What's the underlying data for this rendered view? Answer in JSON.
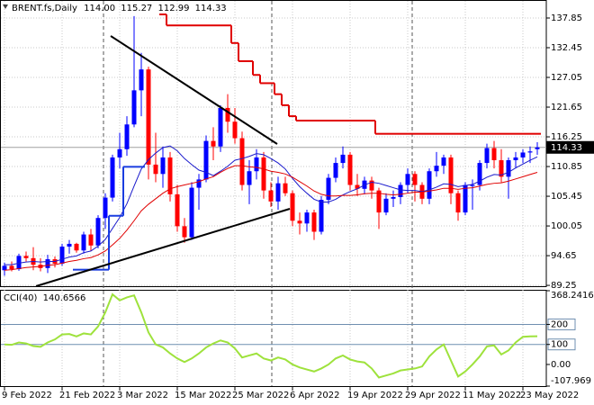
{
  "chart_data": [
    {
      "type": "candlestick",
      "title": "BRENT.fs,Daily",
      "quote": [
        "114.00",
        "115.27",
        "112.99",
        "114.33"
      ],
      "categories": [
        "9 Feb 2022",
        null,
        null,
        null,
        null,
        null,
        null,
        null,
        "21 Feb 2022",
        null,
        null,
        null,
        null,
        null,
        null,
        null,
        "3 Mar 2022",
        null,
        null,
        null,
        null,
        null,
        null,
        null,
        "15 Mar 2022",
        null,
        null,
        null,
        null,
        null,
        null,
        null,
        "25 Mar 2022",
        null,
        null,
        null,
        null,
        null,
        null,
        null,
        "6 Apr 2022",
        null,
        null,
        null,
        null,
        null,
        null,
        null,
        "19 Apr 2022",
        null,
        null,
        null,
        null,
        null,
        null,
        null,
        "29 Apr 2022",
        null,
        null,
        null,
        null,
        null,
        null,
        null,
        "11 May 2022",
        null,
        null,
        null,
        null,
        null,
        null,
        null,
        "23 May 2022",
        null,
        null
      ],
      "open": [
        92.0,
        92.8,
        92.2,
        94.6,
        94.2,
        93.0,
        92.4,
        94.0,
        93.2,
        96.3,
        96.8,
        95.6,
        98.5,
        96.5,
        101.5,
        105.2,
        112.5,
        114.0,
        118.5,
        124.7,
        128.5,
        111.2,
        109.5,
        112.5,
        105.8,
        100.0,
        98.0,
        107.0,
        108.5,
        115.5,
        114.5,
        121.5,
        119.0,
        116.0,
        107.5,
        110.0,
        112.5,
        106.5,
        104.5,
        107.8,
        106.0,
        101.0,
        100.5,
        102.5,
        99.0,
        104.8,
        108.8,
        111.5,
        113.0,
        107.5,
        106.8,
        108.3,
        106.5,
        102.5,
        105.0,
        105.3,
        107.5,
        109.5,
        107.5,
        105.0,
        110.0,
        111.0,
        112.5,
        106.0,
        102.5,
        107.3,
        107.5,
        111.5,
        114.2,
        112.0,
        109.0,
        112.0,
        112.5,
        113.4,
        114.0
      ],
      "high": [
        93.4,
        93.6,
        95.0,
        95.4,
        96.2,
        94.2,
        94.8,
        94.5,
        96.8,
        97.5,
        97.0,
        99.0,
        99.5,
        102.0,
        106.0,
        113.0,
        117.0,
        120.0,
        138.2,
        131.5,
        129.0,
        117.0,
        114.5,
        113.5,
        107.5,
        101.5,
        108.0,
        109.5,
        116.5,
        118.0,
        122.0,
        124.0,
        121.5,
        117.2,
        112.0,
        114.0,
        113.5,
        108.0,
        109.0,
        109.0,
        106.5,
        102.5,
        103.0,
        103.0,
        105.5,
        109.5,
        112.5,
        114.5,
        113.5,
        109.5,
        109.0,
        109.0,
        107.0,
        106.0,
        106.5,
        108.0,
        110.5,
        110.0,
        108.0,
        110.5,
        113.5,
        113.0,
        113.0,
        106.5,
        108.0,
        108.5,
        112.0,
        115.0,
        115.5,
        114.0,
        112.5,
        113.5,
        114.0,
        114.5,
        115.27
      ],
      "low": [
        91.0,
        91.8,
        91.9,
        93.6,
        92.0,
        91.8,
        91.5,
        92.5,
        92.8,
        95.0,
        95.2,
        95.0,
        95.5,
        96.0,
        99.5,
        104.5,
        110.5,
        112.8,
        118.0,
        120.0,
        108.5,
        108.0,
        107.0,
        104.5,
        99.0,
        97.0,
        97.5,
        103.0,
        108.0,
        112.0,
        113.5,
        117.0,
        115.0,
        106.5,
        104.0,
        108.5,
        105.0,
        103.5,
        103.0,
        105.5,
        100.0,
        98.5,
        99.0,
        97.5,
        98.5,
        104.0,
        108.0,
        110.5,
        106.5,
        105.5,
        105.8,
        105.0,
        99.5,
        102.0,
        103.5,
        104.0,
        106.0,
        104.5,
        104.0,
        104.0,
        109.0,
        109.5,
        104.0,
        101.0,
        102.0,
        103.0,
        106.5,
        110.5,
        110.5,
        108.0,
        105.0,
        110.5,
        111.5,
        111.5,
        112.99
      ],
      "close": [
        92.8,
        92.2,
        94.6,
        94.2,
        93.0,
        92.4,
        94.0,
        93.2,
        96.3,
        96.8,
        95.6,
        98.5,
        96.5,
        101.5,
        105.2,
        112.5,
        114.0,
        118.5,
        124.7,
        128.5,
        111.2,
        109.5,
        112.5,
        105.8,
        100.0,
        98.0,
        107.0,
        108.5,
        115.5,
        114.5,
        121.5,
        119.0,
        116.0,
        107.5,
        110.0,
        112.5,
        106.5,
        104.5,
        107.8,
        106.0,
        101.0,
        100.5,
        102.5,
        99.0,
        104.8,
        108.8,
        111.5,
        113.0,
        107.5,
        106.8,
        108.3,
        106.5,
        102.5,
        105.0,
        105.3,
        107.5,
        109.5,
        107.5,
        105.0,
        110.0,
        111.0,
        112.5,
        106.0,
        102.5,
        107.5,
        107.5,
        111.5,
        114.2,
        112.0,
        109.0,
        112.0,
        112.5,
        113.4,
        113.6,
        114.33
      ],
      "up_color": "#0000ff",
      "down_color": "#ff0000",
      "overlays": [
        {
          "style": "line",
          "color": "#1a1acc",
          "values": [
            93.0,
            93.0,
            93.3,
            93.5,
            93.6,
            93.5,
            93.6,
            93.6,
            94.0,
            94.4,
            94.6,
            95.2,
            95.5,
            96.4,
            97.6,
            99.6,
            101.6,
            104.1,
            107.3,
            110.4,
            112.1,
            113.3,
            114.3,
            114.6,
            113.7,
            112.3,
            111.2,
            110.2,
            109.8,
            109.2,
            110.0,
            110.9,
            112.0,
            112.3,
            112.7,
            113.2,
            113.0,
            112.3,
            111.5,
            110.4,
            108.7,
            107.2,
            106.0,
            104.9,
            104.4,
            104.4,
            104.9,
            105.7,
            106.3,
            106.8,
            107.5,
            108.0,
            107.8,
            107.4,
            107.0,
            106.6,
            106.5,
            106.5,
            106.3,
            106.6,
            107.1,
            107.7,
            107.6,
            107.2,
            107.4,
            107.6,
            108.2,
            108.9,
            109.4,
            109.3,
            109.8,
            110.6,
            111.3,
            112.0,
            112.6
          ]
        },
        {
          "style": "line",
          "color": "#e00000",
          "values": [
            92.0,
            92.1,
            92.3,
            92.5,
            92.6,
            92.7,
            92.9,
            93.0,
            93.3,
            93.6,
            93.8,
            94.1,
            94.3,
            94.8,
            95.5,
            96.6,
            97.8,
            99.3,
            101.0,
            102.8,
            104.0,
            105.0,
            106.0,
            106.8,
            107.2,
            107.5,
            107.8,
            108.1,
            108.6,
            109.0,
            109.8,
            110.5,
            111.0,
            111.0,
            110.8,
            110.7,
            110.4,
            110.0,
            109.8,
            109.5,
            108.9,
            108.1,
            107.3,
            106.4,
            105.8,
            105.5,
            105.5,
            105.6,
            105.6,
            105.7,
            105.9,
            106.0,
            106.0,
            105.8,
            105.7,
            105.8,
            106.0,
            106.2,
            106.2,
            106.4,
            106.6,
            106.9,
            106.9,
            106.7,
            106.9,
            107.0,
            107.3,
            107.6,
            107.8,
            107.9,
            108.2,
            108.6,
            109.0,
            109.4,
            109.8
          ]
        },
        {
          "style": "step",
          "color": "#e00000",
          "values": [
            null,
            null,
            null,
            null,
            null,
            null,
            null,
            null,
            null,
            null,
            null,
            null,
            null,
            null,
            null,
            null,
            null,
            null,
            null,
            null,
            null,
            null,
            138.5,
            136.5,
            136.5,
            136.5,
            136.5,
            136.5,
            136.5,
            136.5,
            136.5,
            136.5,
            133.3,
            130.0,
            130.0,
            127.5,
            126.0,
            126.0,
            124.0,
            122.0,
            120.0,
            119.2,
            119.2,
            119.2,
            119.2,
            119.2,
            119.2,
            119.2,
            119.2,
            119.2,
            119.2,
            119.2,
            116.8,
            116.8,
            116.8,
            116.8,
            116.8,
            116.8,
            116.8,
            116.8,
            116.8,
            116.8,
            116.8,
            116.8,
            116.8,
            116.8,
            116.8,
            116.8,
            116.8,
            116.8,
            116.8,
            116.8,
            116.8,
            116.8,
            116.8
          ]
        },
        {
          "style": "step",
          "color": "#1a3de0",
          "values": [
            null,
            null,
            null,
            null,
            null,
            null,
            null,
            null,
            null,
            null,
            92.1,
            92.1,
            92.1,
            92.1,
            92.1,
            101.9,
            101.9,
            110.8,
            110.8,
            110.8,
            null,
            null,
            null,
            null,
            null,
            null,
            null,
            null,
            null,
            null,
            null,
            null,
            null,
            null,
            null,
            null,
            null,
            null,
            null,
            null,
            null,
            null,
            null,
            null,
            null,
            null,
            null,
            null,
            null,
            null,
            null,
            null,
            null,
            null,
            null,
            null,
            null,
            null,
            null,
            null,
            null,
            null,
            null,
            null,
            null,
            null,
            null,
            null,
            null,
            null,
            null,
            null,
            null,
            null,
            null
          ]
        }
      ],
      "ylim": [
        89.1,
        141.12
      ],
      "yticks": [
        137.85,
        132.45,
        127.05,
        121.65,
        116.25,
        110.85,
        105.45,
        100.05,
        94.65,
        89.25
      ],
      "grid": true
    },
    {
      "type": "line",
      "title": "CCI(40)",
      "color": "#9ee23c",
      "values": [
        100,
        98,
        110,
        105,
        92,
        88,
        110,
        125,
        150,
        152,
        140,
        155,
        150,
        190,
        260,
        350,
        320,
        335,
        345,
        260,
        160,
        100,
        85,
        55,
        30,
        12,
        30,
        55,
        85,
        105,
        120,
        110,
        80,
        35,
        45,
        55,
        30,
        20,
        35,
        25,
        0,
        -15,
        -25,
        -35,
        -20,
        0,
        30,
        45,
        25,
        15,
        10,
        -20,
        -65,
        -55,
        -45,
        -30,
        -25,
        -20,
        -10,
        40,
        75,
        100,
        20,
        -60,
        -35,
        0,
        40,
        90,
        95,
        50,
        70,
        110,
        138,
        140,
        140.6566
      ],
      "levels": [
        200,
        100
      ],
      "level_color": "#6f8fb0",
      "ylim": [
        -107.969,
        368.2416
      ],
      "yticks": [
        368.2416,
        200,
        100,
        {
          "value": 0,
          "label": "0.00"
        },
        -107.969
      ]
    }
  ]
}
